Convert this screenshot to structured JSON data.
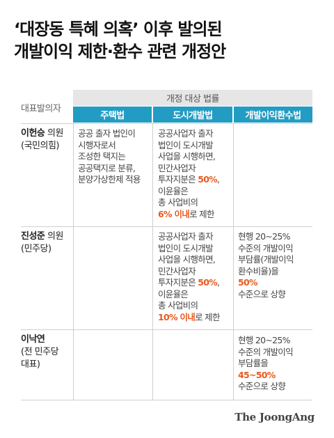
{
  "title": {
    "line1": "‘대장동 특혜 의혹’ 이후 발의된",
    "line2": "개발이익 제한·환수 관련 개정안"
  },
  "table": {
    "proposer_header": "대표발의자",
    "super_header": "개정 대상 법률",
    "columns": [
      "주택법",
      "도시개발법",
      "개발이익환수법"
    ],
    "rows": [
      {
        "name": "이헌승",
        "role": " 의원",
        "party": "(국민의힘)",
        "housing": [
          "공공 출자 법인이",
          "시행자로서",
          "조성한 택지는",
          "공공택지로 분류,",
          "분양가상한제 적용"
        ],
        "urban": {
          "lines": [
            "공공사업자 출자",
            "법인이 도시개발",
            "사업을 시행하면,",
            "민간사업자"
          ],
          "share_prefix": "투자지분은 ",
          "share_value": "50%",
          "share_suffix": ",",
          "mid": [
            "이윤율은",
            "총 사업비의"
          ],
          "cap_value": "6% 이내",
          "cap_suffix": "로 제한"
        }
      },
      {
        "name": "진성준",
        "role": " 의원",
        "party": "(민주당)",
        "urban": {
          "lines": [
            "공공사업자 출자",
            "법인이 도시개발",
            "사업을 시행하면,",
            "민간사업자"
          ],
          "share_prefix": "투자지분은 ",
          "share_value": "50%",
          "share_suffix": ",",
          "mid": [
            "이윤율은",
            "총 사업비의"
          ],
          "cap_value": "10% 이내",
          "cap_suffix": "로 제한"
        },
        "recovery": {
          "lines": [
            "현행 20~25%",
            "수준의 개발이익",
            "부담률(개발이익",
            "환수비율)을"
          ],
          "value": "50%",
          "suffix": "수준으로 상향"
        }
      },
      {
        "name": "이낙연",
        "party_lines": [
          "(전 민주당",
          "대표)"
        ],
        "recovery": {
          "lines": [
            "현행 20~25%",
            "수준의 개발이익",
            "부담률을"
          ],
          "value": "45~50%",
          "suffix": "수준으로 상향"
        }
      }
    ]
  },
  "colors": {
    "header_blue": "#239cc3",
    "header_gray": "#e6e6e6",
    "highlight": "#e85a1c"
  },
  "source_logo": "The JoongAng"
}
